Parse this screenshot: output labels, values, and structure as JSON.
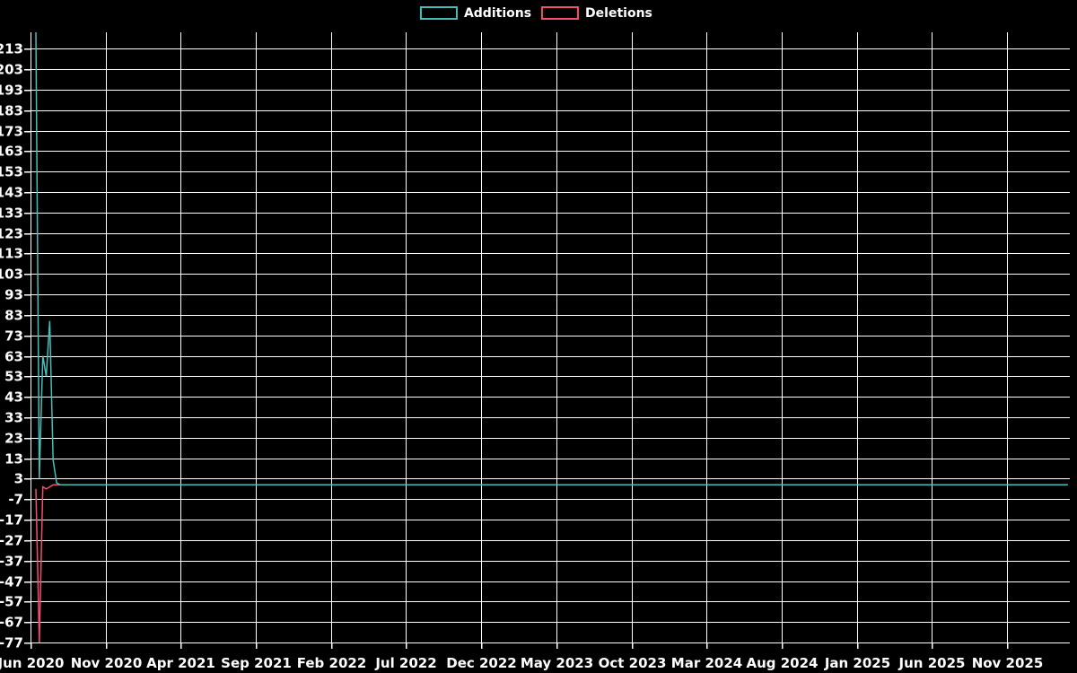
{
  "colors": {
    "background": "#000000",
    "grid": "#ffffff",
    "text": "#ffffff",
    "additions": "#45beba",
    "deletions": "#f0506e"
  },
  "legend": {
    "items": [
      {
        "label": "Additions",
        "color_key": "additions"
      },
      {
        "label": "Deletions",
        "color_key": "deletions"
      }
    ]
  },
  "chart_data": {
    "type": "line",
    "title": "",
    "grid": true,
    "legend_position": "top-center",
    "x_axis": {
      "tick_labels": [
        "Jun 2020",
        "Nov 2020",
        "Apr 2021",
        "Sep 2021",
        "Feb 2022",
        "Jul 2022",
        "Dec 2022",
        "May 2023",
        "Oct 2023",
        "Mar 2024",
        "Aug 2024",
        "Jan 2025",
        "Jun 2025",
        "Nov 2025"
      ],
      "tick_interval_months": 5
    },
    "y_axis": {
      "tick_labels": [
        "213",
        "203",
        "193",
        "183",
        "173",
        "163",
        "153",
        "143",
        "133",
        "123",
        "113",
        "103",
        "93",
        "83",
        "73",
        "63",
        "53",
        "43",
        "33",
        "23",
        "13",
        "3",
        "-7",
        "-17",
        "-27",
        "-37",
        "-47",
        "-57",
        "-67",
        "-77"
      ],
      "min": -77,
      "max": 221
    },
    "series": [
      {
        "name": "Deletions",
        "color_key": "deletions",
        "points_week_value": [
          [
            0,
            -2
          ],
          [
            1,
            -77
          ],
          [
            2,
            -1
          ],
          [
            3,
            -2
          ],
          [
            4,
            -1
          ],
          [
            5,
            0
          ],
          [
            299,
            0
          ]
        ]
      },
      {
        "name": "Additions",
        "color_key": "additions",
        "points_week_value": [
          [
            0,
            221
          ],
          [
            1,
            3
          ],
          [
            2,
            63
          ],
          [
            3,
            53
          ],
          [
            4,
            80
          ],
          [
            5,
            12
          ],
          [
            6,
            1
          ],
          [
            7,
            0
          ],
          [
            299,
            0
          ]
        ]
      }
    ]
  }
}
